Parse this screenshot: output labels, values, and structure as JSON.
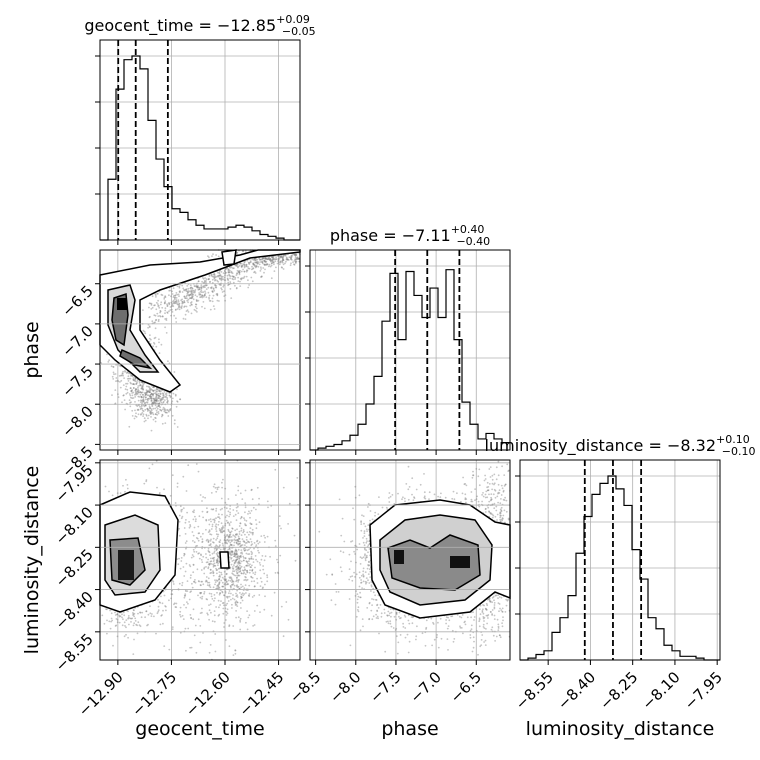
{
  "chart_data": {
    "type": "corner",
    "parameters": [
      "geocent_time",
      "phase",
      "luminosity_distance"
    ],
    "summaries": [
      {
        "param": "geocent_time",
        "median": "−12.85",
        "plus": "+0.09",
        "minus": "−0.05",
        "quantiles": [
          -12.899,
          -12.85,
          -12.76
        ]
      },
      {
        "param": "phase",
        "median": "−7.11",
        "plus": "+0.40",
        "minus": "−0.40",
        "quantiles": [
          -7.51,
          -7.11,
          -6.71
        ]
      },
      {
        "param": "luminosity_distance",
        "median": "−8.32",
        "plus": "+0.10",
        "minus": "−0.10",
        "quantiles": [
          -8.42,
          -8.32,
          -8.22
        ]
      }
    ],
    "ranges": {
      "geocent_time": [
        -12.95,
        -12.39
      ],
      "phase": [
        -8.57,
        -6.08
      ],
      "luminosity_distance": [
        -8.65,
        -7.94
      ]
    },
    "ticks": {
      "geocent_time": {
        "values": [
          -12.9,
          -12.75,
          -12.6,
          -12.45
        ],
        "labels": [
          "−12.90",
          "−12.75",
          "−12.60",
          "−12.45"
        ]
      },
      "phase_x": {
        "values": [
          -8.5,
          -8.0,
          -7.5,
          -7.0,
          -6.5
        ],
        "labels": [
          "−8.5",
          "−8.0",
          "−7.5",
          "−7.0",
          "−6.5"
        ]
      },
      "phase_y": {
        "values": [
          -6.5,
          -7.0,
          -7.5,
          -8.0,
          -8.5
        ],
        "labels": [
          "−6.5",
          "−7.0",
          "−7.5",
          "−8.0",
          "−8.5"
        ]
      },
      "luminosity_distance": {
        "values": [
          -8.55,
          -8.4,
          -8.25,
          -8.1,
          -7.95
        ],
        "labels": [
          "−8.55",
          "−8.40",
          "−8.25",
          "−8.10",
          "−7.95"
        ]
      }
    },
    "histograms": {
      "geocent_time": {
        "edges_start": -12.95,
        "bin_width": 0.0224,
        "counts": [
          0,
          0.33,
          0.82,
          0.98,
          1.0,
          0.93,
          0.65,
          0.44,
          0.29,
          0.17,
          0.15,
          0.11,
          0.08,
          0.06,
          0.06,
          0.06,
          0.07,
          0.08,
          0.07,
          0.05,
          0.03,
          0.02,
          0.01,
          0.0,
          0.0
        ]
      },
      "phase": {
        "edges_start": -8.57,
        "bin_width": 0.0996,
        "counts": [
          0.0,
          0.01,
          0.02,
          0.03,
          0.05,
          0.08,
          0.14,
          0.25,
          0.4,
          0.7,
          0.96,
          0.6,
          0.97,
          0.84,
          0.72,
          0.88,
          0.72,
          0.98,
          0.6,
          0.26,
          0.14,
          0.06,
          0.09,
          0.06,
          0.04
        ]
      },
      "luminosity_distance": {
        "edges_start": -8.65,
        "bin_width": 0.0284,
        "counts": [
          0.0,
          0.01,
          0.03,
          0.05,
          0.15,
          0.23,
          0.35,
          0.58,
          0.78,
          0.9,
          0.96,
          1.0,
          0.93,
          0.84,
          0.6,
          0.44,
          0.23,
          0.17,
          0.08,
          0.05,
          0.02,
          0.02,
          0.01,
          0.0,
          0.0
        ]
      }
    },
    "grid": true,
    "levels": 3,
    "colors": {
      "line": "#000000",
      "grid": "#b0b0b0",
      "points": "#7f7f7f"
    }
  }
}
